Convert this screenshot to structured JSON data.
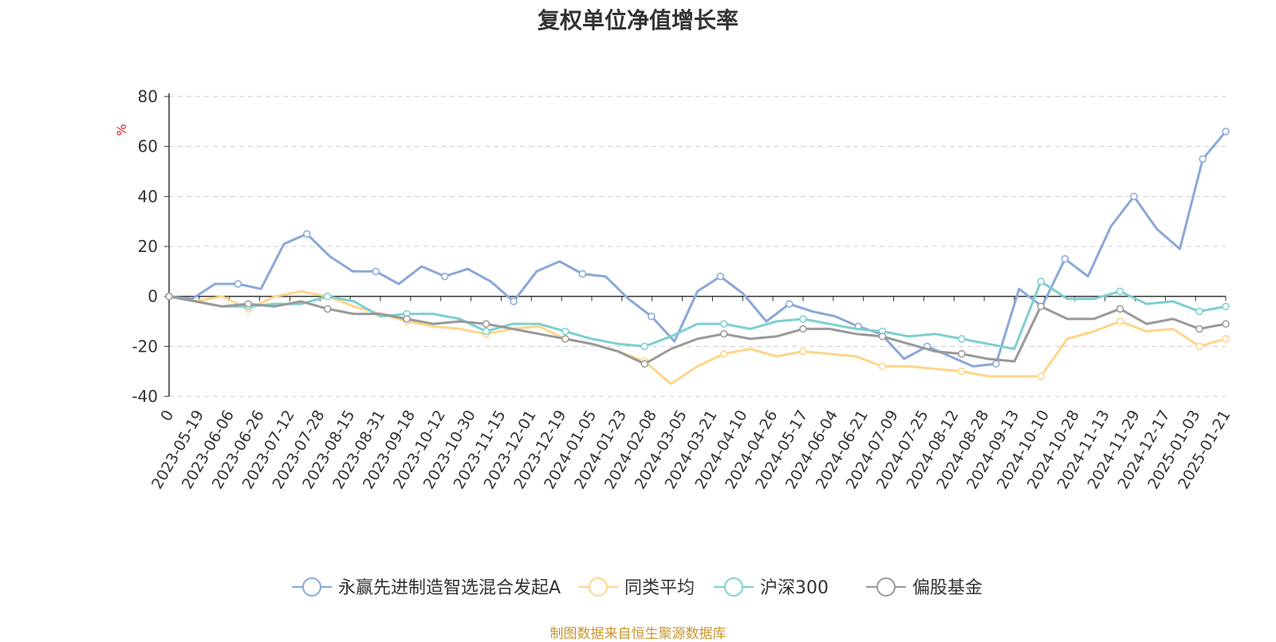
{
  "chart_data": {
    "type": "line",
    "title": "复权单位净值增长率",
    "ylabel": "%",
    "ylim": [
      -40,
      80
    ],
    "yticks": [
      80,
      60,
      40,
      20,
      0,
      -20,
      -40
    ],
    "x_tick_labels": [
      "0",
      "2023-05-19",
      "2023-06-06",
      "2023-06-26",
      "2023-07-12",
      "2023-07-28",
      "2023-08-15",
      "2023-08-31",
      "2023-09-18",
      "2023-10-12",
      "2023-10-30",
      "2023-11-15",
      "2023-12-01",
      "2023-12-19",
      "2024-01-05",
      "2024-01-23",
      "2024-02-08",
      "2024-03-05",
      "2024-03-21",
      "2024-04-10",
      "2024-04-26",
      "2024-05-17",
      "2024-06-04",
      "2024-06-21",
      "2024-07-09",
      "2024-07-25",
      "2024-08-12",
      "2024-08-28",
      "2024-09-13",
      "2024-10-10",
      "2024-10-28",
      "2024-11-13",
      "2024-11-29",
      "2024-12-17",
      "2025-01-03",
      "2025-01-21"
    ],
    "grid": true,
    "legend_position": "bottom",
    "series": [
      {
        "name": "永赢先进制造智选混合发起A",
        "color": "#8aa8d8",
        "values": [
          0,
          -1,
          5,
          5,
          3,
          21,
          25,
          16,
          10,
          10,
          5,
          12,
          8,
          11,
          6,
          -2,
          10,
          14,
          9,
          8,
          -1,
          -8,
          -18,
          2,
          8,
          1,
          -10,
          -3,
          -6,
          -8,
          -12,
          -15,
          -25,
          -20,
          -24,
          -28,
          -27,
          3,
          -4,
          15,
          8,
          28,
          40,
          27,
          19,
          55,
          66
        ]
      },
      {
        "name": "同类平均",
        "color": "#ffd58a",
        "values": [
          0,
          -2,
          0,
          -5,
          0,
          2,
          0,
          -4,
          -7,
          -10,
          -12,
          -13,
          -15,
          -13,
          -12,
          -17,
          -19,
          -22,
          -26,
          -35,
          -28,
          -23,
          -21,
          -24,
          -22,
          -23,
          -24,
          -28,
          -28,
          -29,
          -30,
          -32,
          -32,
          -32,
          -17,
          -14,
          -10,
          -14,
          -13,
          -20,
          -17
        ]
      },
      {
        "name": "沪深300",
        "color": "#7ecfd0",
        "values": [
          0,
          -2,
          -4,
          -4,
          -3,
          -3,
          0,
          -2,
          -8,
          -7,
          -7,
          -9,
          -14,
          -11,
          -11,
          -14,
          -17,
          -19,
          -20,
          -16,
          -11,
          -11,
          -13,
          -10,
          -9,
          -11,
          -13,
          -14,
          -16,
          -15,
          -17,
          -19,
          -21,
          6,
          -1,
          -1,
          2,
          -3,
          -2,
          -6,
          -4
        ]
      },
      {
        "name": "偏股基金",
        "color": "#999999",
        "values": [
          0,
          -2,
          -4,
          -3,
          -4,
          -2,
          -5,
          -7,
          -7,
          -9,
          -11,
          -10,
          -11,
          -13,
          -15,
          -17,
          -19,
          -22,
          -27,
          -21,
          -17,
          -15,
          -17,
          -16,
          -13,
          -13,
          -15,
          -16,
          -19,
          -22,
          -23,
          -25,
          -26,
          -4,
          -9,
          -9,
          -5,
          -11,
          -9,
          -13,
          -11
        ]
      }
    ]
  },
  "source_note": "制图数据来自恒生聚源数据库"
}
